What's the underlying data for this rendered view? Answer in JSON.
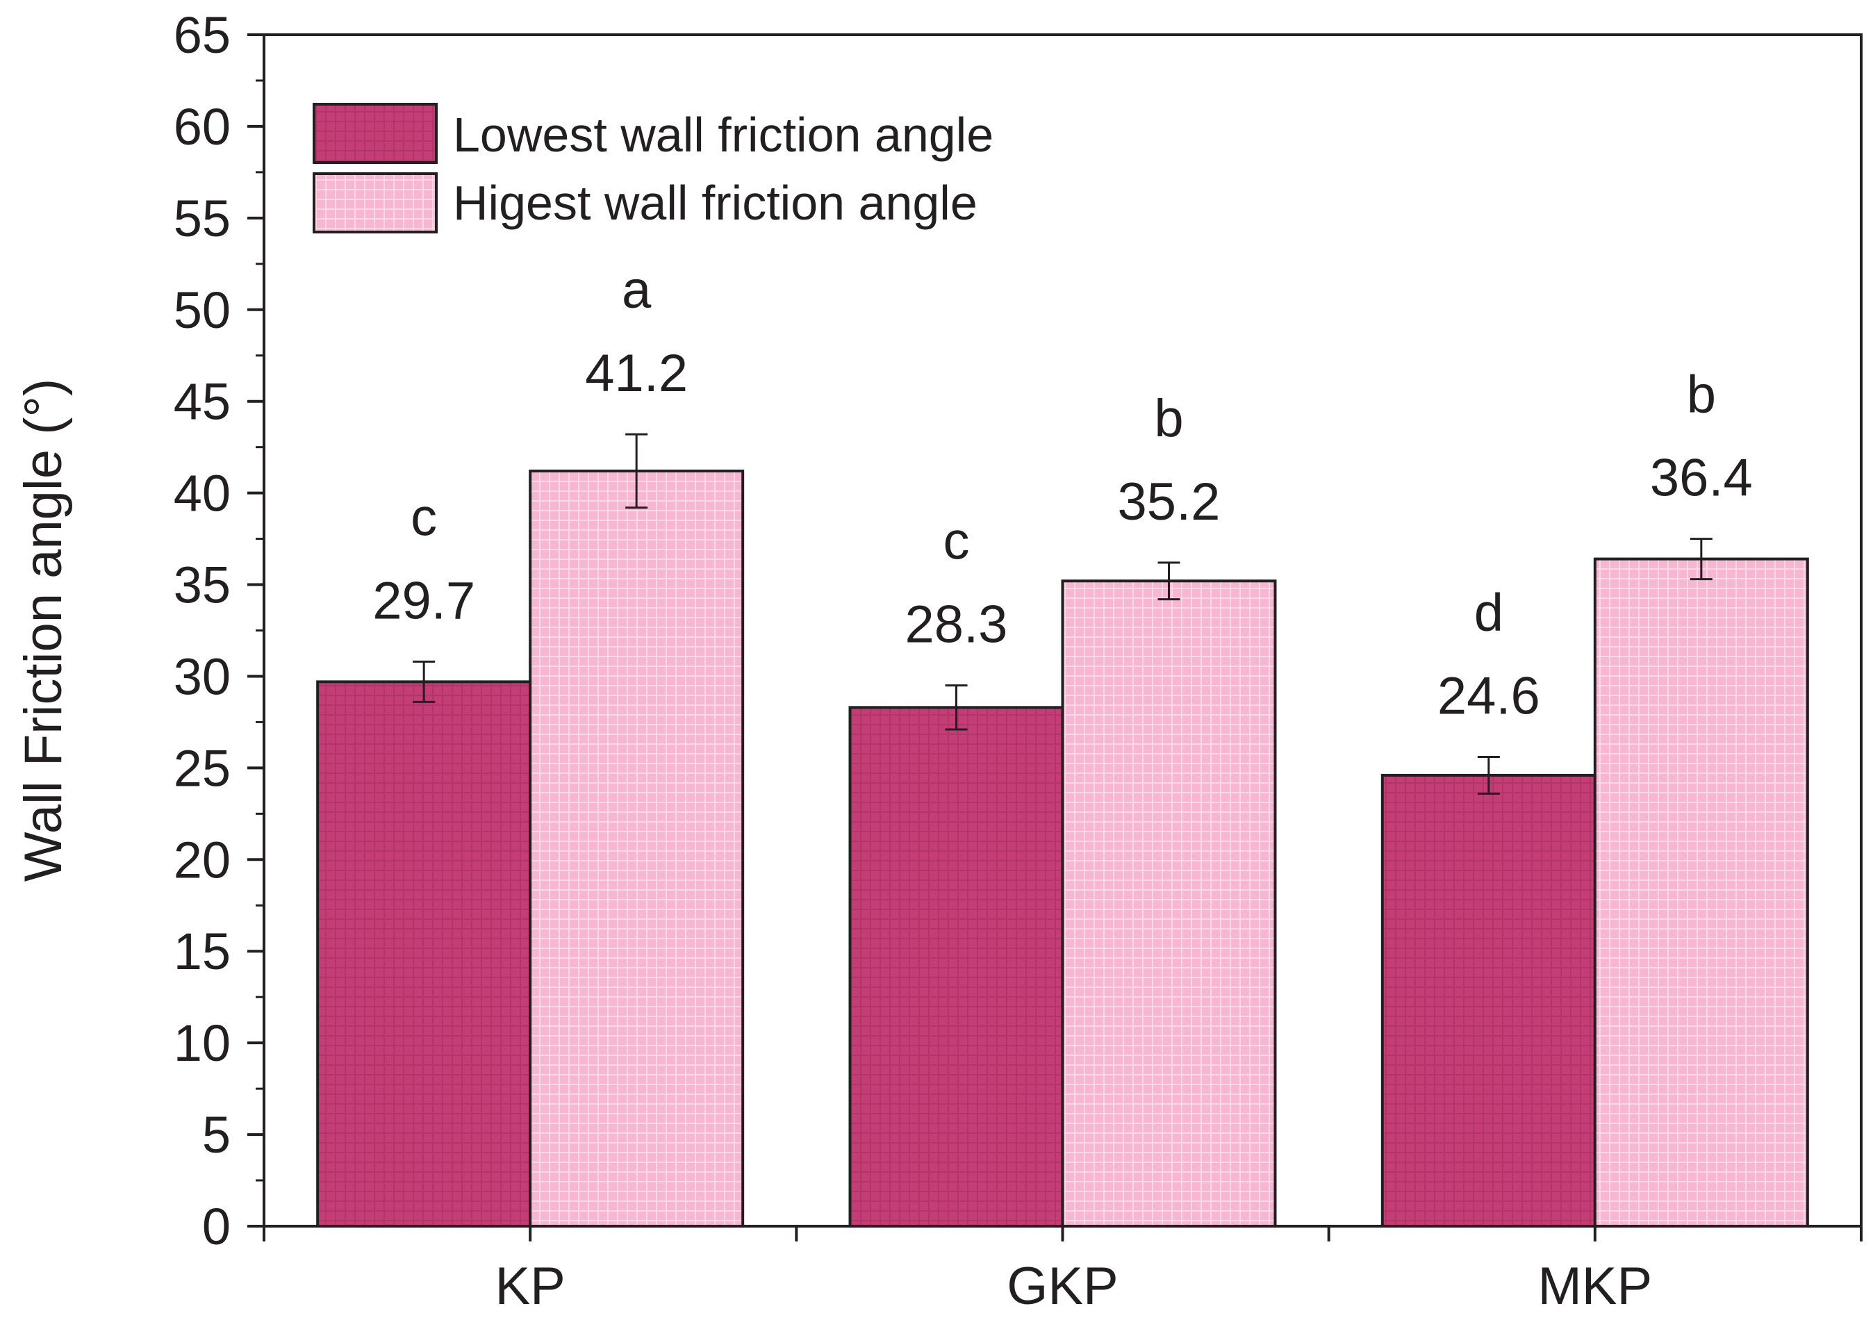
{
  "chart_data": {
    "type": "bar",
    "xlabel": "",
    "ylabel": "Wall Friction angle (°)",
    "ylim": [
      0,
      65
    ],
    "yticks": [
      0,
      5,
      10,
      15,
      20,
      25,
      30,
      35,
      40,
      45,
      50,
      55,
      60,
      65
    ],
    "categories": [
      "KP",
      "GKP",
      "MKP"
    ],
    "legend_position": "top-left",
    "grid": false,
    "series": [
      {
        "name": "Lowest wall friction angle",
        "color": "#c43d75",
        "values": [
          29.7,
          28.3,
          24.6
        ],
        "errors": [
          1.1,
          1.2,
          1.0
        ],
        "value_labels": [
          "29.7",
          "28.3",
          "24.6"
        ],
        "letters": [
          "c",
          "c",
          "d"
        ]
      },
      {
        "name": "Higest wall friction angle",
        "color": "#f7b7d3",
        "values": [
          41.2,
          35.2,
          36.4
        ],
        "errors": [
          2.0,
          1.0,
          1.1
        ],
        "value_labels": [
          "41.2",
          "35.2",
          "36.4"
        ],
        "letters": [
          "a",
          "b",
          "b"
        ]
      }
    ]
  }
}
